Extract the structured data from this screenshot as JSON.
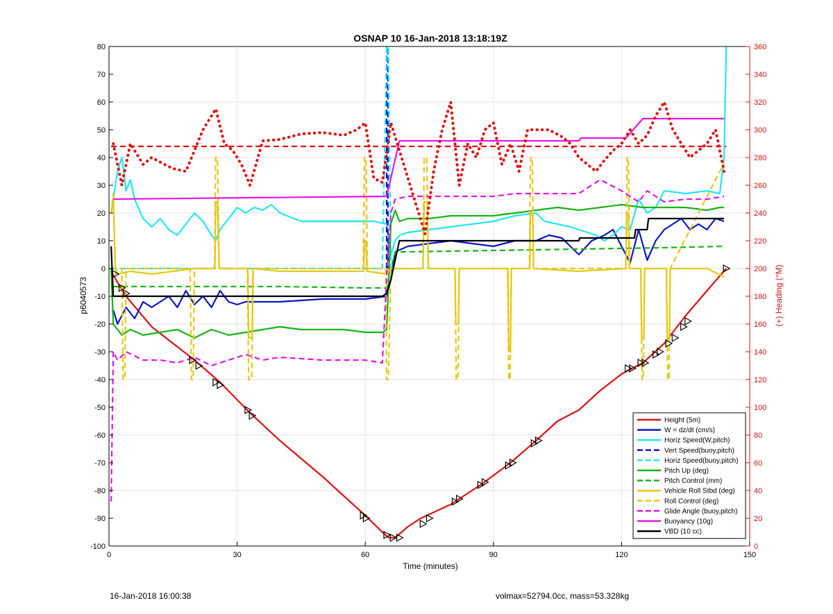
{
  "footer": {
    "timestamp": "16-Jan-2018 16:00:38",
    "info": "volmax=52794.0cc, mass=53.328kg"
  },
  "colors": {
    "height": "#dd1111",
    "w": "#0a14c8",
    "horiz_speed": "#22e6f0",
    "vert_speed_buoy": "#0a14c8",
    "horiz_speed_buoy": "#22e6f0",
    "pitch_up": "#14b414",
    "pitch_control": "#14b414",
    "roll": "#e6c814",
    "roll_control": "#e6c814",
    "glide_angle": "#e614e6",
    "buoyancy": "#e614e6",
    "vbd": "#000000",
    "heading": "#dd1111",
    "grid": "#e2e2e2",
    "right_axis": "#cc1111"
  },
  "chart_data": {
    "type": "line",
    "title": "OSNAP 10 16-Jan-2018 13:18:19Z",
    "xlabel": "Time (minutes)",
    "ylabel": "p6040573",
    "ylabel_right": "(+) Heading (°M)",
    "xlim": [
      0,
      150
    ],
    "ylim": [
      -100,
      80
    ],
    "ylim_right": [
      0,
      360
    ],
    "xticks": [
      0,
      30,
      60,
      90,
      120,
      150
    ],
    "yticks": [
      -100,
      -90,
      -80,
      -70,
      -60,
      -50,
      -40,
      -30,
      -20,
      -10,
      0,
      10,
      20,
      30,
      40,
      50,
      60,
      70,
      80
    ],
    "yticks_right": [
      0,
      20,
      40,
      60,
      80,
      100,
      120,
      140,
      160,
      180,
      200,
      220,
      240,
      260,
      280,
      300,
      320,
      340,
      360
    ],
    "grid": true,
    "legend_position": "bottom-right",
    "series": [
      {
        "name": "Height (5m)",
        "key": "height",
        "style": "solid",
        "axis": "left",
        "x": [
          0.5,
          2,
          4,
          10,
          20,
          26,
          33,
          40,
          50,
          60,
          64,
          65.5,
          67,
          70,
          73,
          80,
          87,
          94,
          100,
          105,
          110,
          115,
          120,
          125,
          130,
          135,
          140,
          144.5
        ],
        "y": [
          -1,
          -5,
          -10,
          -21,
          -33,
          -41,
          -52,
          -62,
          -75,
          -89,
          -95,
          -97,
          -97,
          -93,
          -90,
          -85,
          -78,
          -70,
          -62,
          -55,
          -51,
          -44,
          -38,
          -34,
          -27,
          -17,
          -8,
          0
        ]
      },
      {
        "name": "W = dz/dt (cm/s)",
        "key": "w",
        "style": "solid",
        "axis": "left",
        "x": [
          1,
          2,
          4,
          6,
          8,
          10,
          12,
          14,
          16,
          18,
          20,
          22,
          24,
          26,
          28,
          30,
          32,
          34,
          40,
          50,
          60,
          65,
          66,
          67,
          70,
          75,
          80,
          85,
          90,
          95,
          100,
          103,
          106,
          108,
          110,
          113,
          116,
          118,
          120,
          122,
          124,
          126,
          128,
          130,
          132,
          134,
          136,
          138,
          140,
          142,
          144
        ],
        "y": [
          -15,
          -20,
          -14,
          -18,
          -12,
          -14,
          -12,
          -10,
          -14,
          -8,
          -13,
          -10,
          -14,
          -8,
          -12,
          -13,
          -12,
          -12,
          -12,
          -11,
          -11,
          -10,
          -4,
          6,
          8,
          9,
          10,
          9,
          8,
          10,
          10,
          12,
          11,
          8,
          5,
          10,
          12,
          14,
          8,
          2,
          14,
          3,
          10,
          14,
          16,
          18,
          14,
          16,
          14,
          18,
          17
        ]
      },
      {
        "name": "Horiz Speed(W,pitch)",
        "key": "horiz_speed",
        "style": "solid",
        "axis": "left",
        "x": [
          1,
          2,
          3,
          4,
          5,
          6,
          8,
          10,
          12,
          14,
          16,
          18,
          20,
          22,
          24,
          25,
          26,
          28,
          30,
          32,
          34,
          36,
          38,
          40,
          45,
          50,
          55,
          60,
          62,
          65,
          66,
          67,
          68,
          70,
          75,
          80,
          85,
          90,
          95,
          100,
          102,
          105,
          108,
          110,
          112,
          114,
          116,
          118,
          120,
          122,
          124,
          126,
          128,
          130,
          135,
          140,
          143,
          144,
          144.5
        ],
        "y": [
          25,
          35,
          40,
          28,
          32,
          25,
          18,
          15,
          18,
          14,
          12,
          16,
          20,
          17,
          12,
          10,
          14,
          18,
          22,
          20,
          22,
          21,
          23,
          20,
          17,
          17,
          17,
          17,
          17,
          16,
          5,
          10,
          12,
          13,
          14,
          15,
          16,
          17,
          19,
          20,
          17,
          16,
          15,
          14,
          13,
          12,
          10,
          12,
          15,
          14,
          25,
          20,
          22,
          28,
          27,
          28,
          27,
          40,
          80
        ]
      },
      {
        "name": "Vert Speed(buoy,pitch)",
        "key": "vert_speed_buoy",
        "style": "dashed",
        "axis": "left",
        "x": [
          65,
          65,
          65.3,
          65.3
        ],
        "y": [
          0,
          80,
          80,
          0
        ]
      },
      {
        "name": "Horiz Speed(buoy,pitch)",
        "key": "horiz_speed_buoy",
        "style": "dashed",
        "axis": "left",
        "x": [
          0.5,
          64,
          65,
          65.4,
          66
        ],
        "y": [
          0,
          0,
          80,
          80,
          0
        ]
      },
      {
        "name": "Pitch Up (deg)",
        "key": "pitch_up",
        "style": "solid",
        "axis": "left",
        "x": [
          0.5,
          1,
          3,
          5,
          8,
          12,
          16,
          20,
          24,
          28,
          32,
          36,
          40,
          45,
          50,
          55,
          60,
          64,
          65,
          66,
          67,
          68,
          70,
          75,
          80,
          85,
          90,
          95,
          100,
          105,
          110,
          115,
          120,
          125,
          130,
          135,
          140,
          143,
          144
        ],
        "y": [
          0,
          -20,
          -24,
          -22,
          -24,
          -23,
          -22,
          -25,
          -22,
          -24,
          -23,
          -22,
          -21,
          -22,
          -22,
          -22,
          -23,
          -23,
          -22,
          16,
          21,
          17,
          18,
          18,
          19,
          19,
          19,
          20,
          21,
          22,
          21,
          22,
          23,
          22,
          22,
          22,
          21,
          22,
          22
        ]
      },
      {
        "name": "Pitch Control (mm)",
        "key": "pitch_control",
        "style": "dashed",
        "axis": "left",
        "x": [
          1,
          20,
          40,
          60,
          65,
          66,
          67,
          70,
          90,
          110,
          130,
          144
        ],
        "y": [
          -6.5,
          -6.5,
          -6.5,
          -7,
          -7,
          0,
          6,
          6,
          6.5,
          7,
          7.5,
          8
        ]
      },
      {
        "name": "Vehicle Roll Stbd (deg)",
        "key": "roll",
        "style": "solid",
        "axis": "left",
        "x": [
          0.5,
          1,
          1.5,
          2,
          5,
          10,
          20,
          24.8,
          25,
          25.4,
          25.8,
          30,
          32.5,
          32.7,
          33.5,
          33.7,
          40,
          59.6,
          59.8,
          60.2,
          60.4,
          65,
          66,
          70,
          73.5,
          73.8,
          74.5,
          74.8,
          80,
          81,
          81.2,
          81.8,
          82,
          90,
          93.4,
          93.6,
          94,
          94.2,
          98.5,
          98.7,
          99.2,
          99.4,
          110,
          121,
          121.2,
          121.6,
          121.8,
          124.5,
          124.7,
          125.2,
          125.4,
          130.5,
          130.7,
          131.2,
          131.4,
          140,
          144
        ],
        "y": [
          20,
          25,
          0,
          -2,
          -1,
          -2,
          0,
          0,
          24,
          24,
          0,
          0,
          0,
          -25,
          -25,
          0,
          -1,
          -1,
          10,
          10,
          -1,
          -2,
          0,
          0,
          0,
          24,
          24,
          0,
          0,
          0,
          -20,
          -20,
          0,
          0,
          0,
          -30,
          -30,
          0,
          0,
          20,
          20,
          0,
          -1,
          0,
          20,
          20,
          0,
          0,
          -25,
          -25,
          0,
          0,
          -25,
          -25,
          0,
          0,
          -3
        ]
      },
      {
        "name": "Roll Control (deg)",
        "key": "roll_control",
        "style": "dashed",
        "axis": "left",
        "x": [
          0.5,
          1,
          1.5,
          2,
          3,
          3.3,
          3.7,
          4,
          19,
          19.3,
          19.7,
          20,
          24.7,
          25,
          25.4,
          25.8,
          30,
          32.4,
          32.7,
          33.4,
          33.8,
          40,
          59.5,
          59.8,
          60.2,
          60.5,
          64.8,
          65,
          65.4,
          66,
          70,
          73.5,
          73.8,
          74.4,
          74.7,
          81,
          81.3,
          81.7,
          82,
          93.3,
          93.6,
          93.9,
          94.2,
          98.4,
          98.7,
          99.1,
          99.4,
          121,
          121.3,
          121.6,
          121.9,
          124.5,
          124.8,
          125.1,
          125.4,
          130.5,
          130.8,
          131.1,
          131.4,
          144
        ],
        "y": [
          20,
          27,
          -2,
          0,
          0,
          -40,
          -40,
          0,
          0,
          -40,
          -40,
          0,
          0,
          40,
          40,
          0,
          0,
          0,
          -40,
          -40,
          0,
          0,
          0,
          40,
          40,
          0,
          0,
          -40,
          -40,
          0,
          0,
          0,
          40,
          40,
          0,
          0,
          -40,
          -40,
          0,
          0,
          -40,
          -40,
          0,
          0,
          40,
          40,
          0,
          0,
          40,
          40,
          0,
          0,
          -40,
          -40,
          0,
          0,
          -40,
          -40,
          0,
          38
        ]
      },
      {
        "name": "Glide Angle (buoy,pitch)",
        "key": "glide_angle",
        "style": "dashed",
        "axis": "left",
        "x": [
          0.5,
          1,
          2,
          4,
          8,
          12,
          16,
          20,
          24,
          28,
          32,
          36,
          40,
          50,
          60,
          64,
          65,
          66,
          67,
          70,
          75,
          80,
          85,
          90,
          95,
          100,
          105,
          110,
          115,
          120,
          122,
          124,
          126,
          128,
          130,
          135,
          140,
          144
        ],
        "y": [
          -84,
          -30,
          -33,
          -30,
          -33,
          -33,
          -34,
          -32,
          -35,
          -33,
          -31,
          -33,
          -32,
          -33,
          -33,
          -34,
          -3,
          20,
          25,
          26,
          26,
          26,
          26,
          26,
          27,
          27,
          27,
          27,
          32,
          28,
          26,
          24,
          28,
          26,
          24,
          25,
          25,
          26
        ]
      },
      {
        "name": "Buoyancy (10g)",
        "key": "buoyancy",
        "style": "solid",
        "axis": "left",
        "x": [
          1,
          65,
          68,
          110,
          110.5,
          121,
          125,
          125.5,
          144
        ],
        "y": [
          25,
          26,
          46,
          46,
          47,
          47,
          54,
          54,
          54
        ]
      },
      {
        "name": "VBD (10 cc)",
        "key": "vbd",
        "style": "solid",
        "axis": "left",
        "x": [
          0.5,
          1,
          2,
          30,
          64,
          65,
          66,
          68,
          70,
          110,
          110.2,
          123,
          123.3,
          126,
          126.3,
          144
        ],
        "y": [
          8,
          -10,
          -10,
          -10,
          -10,
          -9,
          -4,
          10,
          10,
          10,
          11,
          11,
          14,
          14,
          18,
          18
        ]
      },
      {
        "name": "",
        "key": "heading",
        "style": "dotted",
        "axis": "right",
        "x": [
          1,
          3,
          5,
          8,
          10,
          13,
          15,
          18,
          20,
          22,
          24,
          25,
          27,
          29,
          31,
          33,
          36,
          40,
          45,
          50,
          55,
          58,
          60,
          62,
          64,
          66,
          68,
          70,
          72,
          74,
          76,
          78,
          80,
          82,
          84,
          86,
          88,
          90,
          92,
          94,
          96,
          98,
          100,
          103,
          106,
          108,
          110,
          112,
          114,
          116,
          118,
          120,
          122,
          124,
          126,
          128,
          130,
          132,
          134,
          136,
          138,
          140,
          142,
          144
        ],
        "y": [
          290,
          260,
          290,
          275,
          280,
          275,
          272,
          270,
          285,
          300,
          310,
          315,
          290,
          285,
          275,
          260,
          292,
          293,
          297,
          298,
          296,
          300,
          305,
          265,
          262,
          305,
          285,
          265,
          245,
          225,
          270,
          300,
          320,
          260,
          290,
          280,
          300,
          305,
          275,
          290,
          270,
          300,
          300,
          300,
          295,
          290,
          280,
          275,
          270,
          278,
          285,
          290,
          300,
          290,
          296,
          310,
          320,
          300,
          290,
          280,
          285,
          290,
          300,
          270
        ]
      },
      {
        "name": "",
        "key": "heading",
        "style": "dashed",
        "axis": "right",
        "x": [
          0.5,
          144.5
        ],
        "y": [
          288,
          288
        ]
      }
    ],
    "height_markers": {
      "x": [
        1.5,
        3,
        4,
        19.5,
        21,
        25,
        26,
        32.5,
        33.5,
        59.5,
        60.2,
        65,
        66.5,
        68,
        73.5,
        75,
        81,
        82,
        87,
        88,
        93.5,
        94.5,
        99.5,
        100.5,
        121.5,
        122.5,
        124.5,
        125.5,
        128,
        129,
        131,
        132.5,
        134.5,
        135.5,
        144.5
      ],
      "y": [
        -2,
        -7,
        -9,
        -33,
        -35,
        -41,
        -42,
        -51,
        -53,
        -89,
        -90,
        -96,
        -97,
        -97,
        -92,
        -90,
        -84,
        -83,
        -78,
        -77,
        -71,
        -70,
        -63,
        -62,
        -36,
        -36,
        -34,
        -34,
        -31,
        -30,
        -27,
        -25,
        -21,
        -19,
        0
      ]
    }
  }
}
